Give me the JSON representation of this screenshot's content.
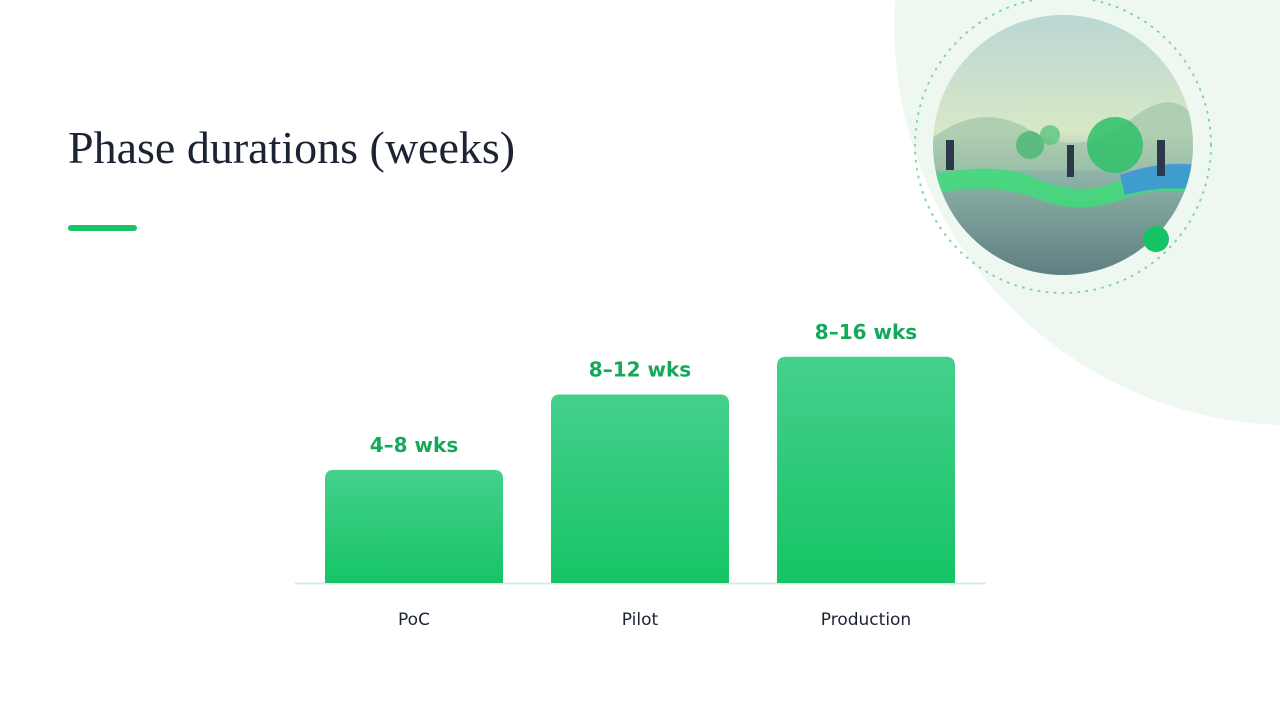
{
  "chart_data": {
    "type": "bar",
    "title": "Phase durations (weeks)",
    "categories": [
      "PoC",
      "Pilot",
      "Production"
    ],
    "values": [
      6,
      10,
      12
    ],
    "value_labels": [
      "4–8 wks",
      "8–12 wks",
      "8–16 wks"
    ],
    "color": "#22c86f"
  }
}
